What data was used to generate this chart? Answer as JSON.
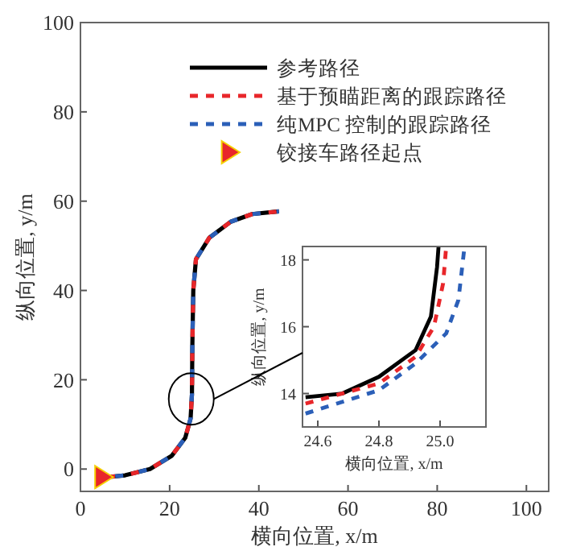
{
  "chart_data": [
    {
      "type": "line",
      "xlabel": "横向位置, x/m",
      "ylabel": "纵向位置, y/m",
      "xlim": [
        0,
        105
      ],
      "ylim": [
        -5,
        100
      ],
      "xticks": [
        0,
        20,
        40,
        60,
        80,
        100
      ],
      "yticks": [
        0,
        20,
        40,
        60,
        80,
        100
      ],
      "legend": "top",
      "series": [
        {
          "name": "参考路径",
          "color": "#000000",
          "line_style": "solid",
          "x": [
            6,
            10,
            15.6,
            20.5,
            23.5,
            24.7,
            25,
            25.1,
            25.3,
            25.9,
            28.9,
            33.7,
            38.5,
            44.5
          ],
          "values": [
            -1.8,
            -1.4,
            0,
            3,
            7,
            11.3,
            16.7,
            28,
            40,
            47,
            51.8,
            55.4,
            57.1,
            57.7
          ]
        },
        {
          "name": "基于预瞄距离的跟踪路径",
          "color": "#e8262a",
          "line_style": "dashed",
          "x": [
            6,
            10,
            15.6,
            20.5,
            23.5,
            24.7,
            25,
            25.1,
            25.3,
            25.9,
            28.9,
            33.7,
            38.5,
            44.5
          ],
          "values": [
            -1.8,
            -1.4,
            0,
            3,
            7,
            11.3,
            16.7,
            28,
            40,
            47,
            51.8,
            55.4,
            57.1,
            57.7
          ]
        },
        {
          "name": "纯MPC 控制的跟踪路径",
          "color": "#2b5fb8",
          "line_style": "dashed",
          "x": [
            6,
            10,
            15.6,
            20.5,
            23.5,
            24.7,
            25,
            25.1,
            25.3,
            25.9,
            28.9,
            33.7,
            38.5,
            44.5
          ],
          "values": [
            -1.8,
            -1.4,
            0,
            3,
            7,
            11.3,
            16.7,
            28,
            40,
            47,
            51.8,
            55.4,
            57.1,
            57.7
          ]
        },
        {
          "name": "铰接车路径起点",
          "type": "scatter",
          "marker": "triangle",
          "color": "#e8262a",
          "x": [
            4.8
          ],
          "values": [
            -1.8
          ]
        }
      ]
    },
    {
      "type": "line",
      "xlabel": "横向位置, x/m",
      "ylabel": "纵向位置, y/m",
      "xlim": [
        24.55,
        25.15
      ],
      "ylim": [
        13,
        18.4
      ],
      "xticks": [
        24.6,
        24.8,
        {
          "value": 25,
          "label": "25.0"
        }
      ],
      "yticks": [
        14,
        16,
        18
      ],
      "series": [
        {
          "color": "#000000",
          "line_style": "solid",
          "x": [
            24.56,
            24.68,
            24.8,
            24.92,
            24.97,
            24.99,
            24.995
          ],
          "values": [
            13.89,
            14.0,
            14.5,
            15.3,
            16.3,
            17.78,
            18.4
          ]
        },
        {
          "color": "#e8262a",
          "line_style": "dashed",
          "x": [
            24.56,
            24.8,
            24.92,
            24.98,
            25.01,
            25.02
          ],
          "values": [
            13.7,
            14.3,
            15.1,
            16.0,
            17.3,
            18.4
          ]
        },
        {
          "color": "#2b5fb8",
          "line_style": "dashed",
          "x": [
            24.56,
            24.8,
            24.92,
            25.02,
            25.06,
            25.07,
            25.08
          ],
          "values": [
            13.4,
            14.1,
            14.9,
            15.8,
            16.8,
            17.6,
            18.4
          ]
        }
      ]
    }
  ]
}
